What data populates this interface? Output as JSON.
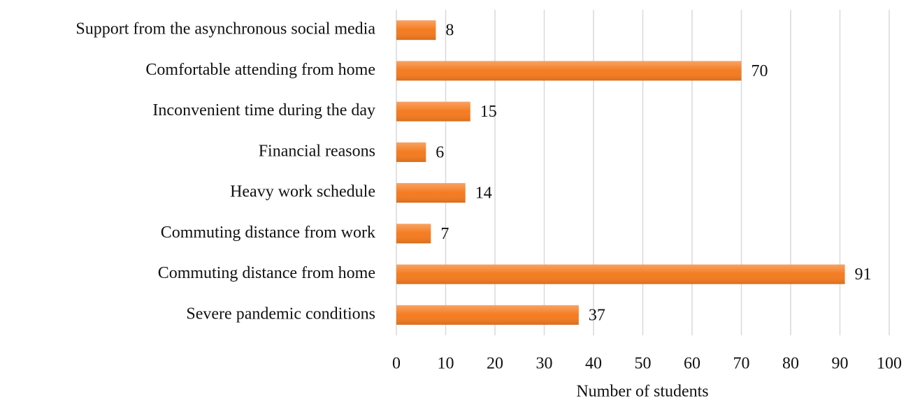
{
  "chart_data": {
    "type": "hbar",
    "x_label": "Number of students",
    "categories": [
      "Support from the asynchronous social media",
      "Comfortable attending from home",
      "Inconvenient time during the day",
      "Financial reasons",
      "Heavy work schedule",
      "Commuting distance from work",
      "Commuting distance from home",
      "Severe pandemic conditions"
    ],
    "values": [
      8,
      70,
      15,
      6,
      14,
      7,
      91,
      37
    ],
    "color": "#f47b20",
    "xlim": [
      0,
      100
    ],
    "xticks": [
      0,
      10,
      20,
      30,
      40,
      50,
      60,
      70,
      80,
      90,
      100
    ],
    "grid": true
  }
}
